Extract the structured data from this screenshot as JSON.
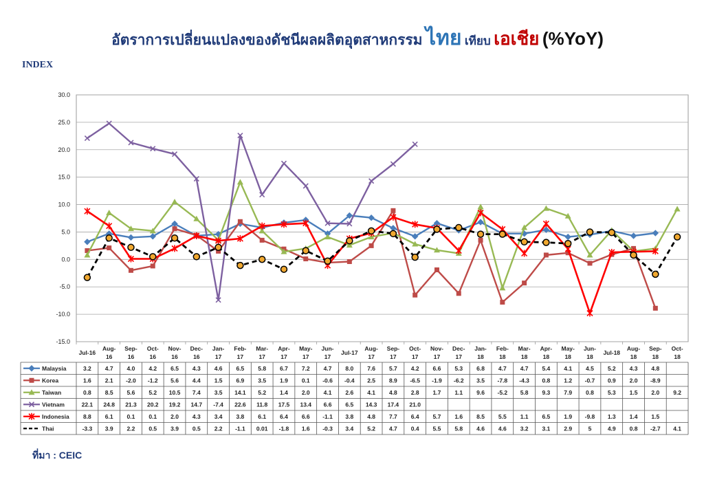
{
  "title": {
    "main": "อัตราการเปลี่ยนแปลงของดัชนีผลผลิตอุตสาหกรรม",
    "thai": "ไทย",
    "compare": "เทียบ",
    "asia": "เอเชีย",
    "yoy": "(%YoY)"
  },
  "index_label": "INDEX",
  "source": "ที่มา : CEIC",
  "colors": {
    "Malaysia": "#4a7ebb",
    "Korea": "#be4b48",
    "Taiwan": "#98b954",
    "Vietnam": "#7d60a0",
    "Indonesia": "#ff0000",
    "Thai": "#000000"
  },
  "chart_data": {
    "type": "line",
    "ylim": [
      -15,
      30
    ],
    "yticks": [
      "-15.0",
      "-10.0",
      "-5.0",
      "0.0",
      "5.0",
      "10.0",
      "15.0",
      "20.0",
      "25.0",
      "30.0"
    ],
    "ytick_values": [
      -15,
      -10,
      -5,
      0,
      5,
      10,
      15,
      20,
      25,
      30
    ],
    "grid": true,
    "categories": [
      [
        "Jul-16"
      ],
      [
        "Aug-",
        "16"
      ],
      [
        "Sep-",
        "16"
      ],
      [
        "Oct-",
        "16"
      ],
      [
        "Nov-",
        "16"
      ],
      [
        "Dec-",
        "16"
      ],
      [
        "Jan-",
        "17"
      ],
      [
        "Feb-",
        "17"
      ],
      [
        "Mar-",
        "17"
      ],
      [
        "Apr-",
        "17"
      ],
      [
        "May-",
        "17"
      ],
      [
        "Jun-",
        "17"
      ],
      [
        "Jul-17"
      ],
      [
        "Aug-",
        "17"
      ],
      [
        "Sep-",
        "17"
      ],
      [
        "Oct-",
        "17"
      ],
      [
        "Nov-",
        "17"
      ],
      [
        "Dec-",
        "17"
      ],
      [
        "Jan-",
        "18"
      ],
      [
        "Feb-",
        "18"
      ],
      [
        "Mar-",
        "18"
      ],
      [
        "Apr-",
        "18"
      ],
      [
        "May-",
        "18"
      ],
      [
        "Jun-",
        "18"
      ],
      [
        "Jul-18"
      ],
      [
        "Aug-",
        "18"
      ],
      [
        "Sep-",
        "18"
      ],
      [
        "Oct-",
        "18"
      ]
    ],
    "series": [
      {
        "name": "Malaysia",
        "marker": "diamond",
        "dash": false,
        "values": [
          3.2,
          4.7,
          4.0,
          4.2,
          6.5,
          4.3,
          4.6,
          6.5,
          5.8,
          6.7,
          7.2,
          4.7,
          8.0,
          7.6,
          5.7,
          4.2,
          6.6,
          5.3,
          6.8,
          4.7,
          4.7,
          5.4,
          4.1,
          4.5,
          5.2,
          4.3,
          4.8,
          null
        ],
        "labels": [
          "3.2",
          "4.7",
          "4.0",
          "4.2",
          "6.5",
          "4.3",
          "4.6",
          "6.5",
          "5.8",
          "6.7",
          "7.2",
          "4.7",
          "8.0",
          "7.6",
          "5.7",
          "4.2",
          "6.6",
          "5.3",
          "6.8",
          "4.7",
          "4.7",
          "5.4",
          "4.1",
          "4.5",
          "5.2",
          "4.3",
          "4.8",
          ""
        ]
      },
      {
        "name": "Korea",
        "marker": "square",
        "dash": false,
        "values": [
          1.6,
          2.1,
          -2.0,
          -1.2,
          5.6,
          4.4,
          1.5,
          6.9,
          3.5,
          1.9,
          0.1,
          -0.6,
          -0.4,
          2.5,
          8.9,
          -6.5,
          -1.9,
          -6.2,
          3.5,
          -7.8,
          -4.3,
          0.8,
          1.2,
          -0.7,
          0.9,
          2.0,
          -8.9,
          null
        ],
        "labels": [
          "1.6",
          "2.1",
          "-2.0",
          "-1.2",
          "5.6",
          "4.4",
          "1.5",
          "6.9",
          "3.5",
          "1.9",
          "0.1",
          "-0.6",
          "-0.4",
          "2.5",
          "8.9",
          "-6.5",
          "-1.9",
          "-6.2",
          "3.5",
          "-7.8",
          "-4.3",
          "0.8",
          "1.2",
          "-0.7",
          "0.9",
          "2.0",
          "-8.9",
          ""
        ]
      },
      {
        "name": "Taiwan",
        "marker": "triangle",
        "dash": false,
        "values": [
          0.8,
          8.5,
          5.6,
          5.2,
          10.5,
          7.4,
          3.5,
          14.1,
          5.2,
          1.4,
          2.0,
          4.1,
          2.6,
          4.1,
          4.8,
          2.8,
          1.7,
          1.1,
          9.6,
          -5.2,
          5.8,
          9.3,
          7.9,
          0.8,
          5.3,
          1.5,
          2.0,
          9.2
        ],
        "labels": [
          "0.8",
          "8.5",
          "5.6",
          "5.2",
          "10.5",
          "7.4",
          "3.5",
          "14.1",
          "5.2",
          "1.4",
          "2.0",
          "4.1",
          "2.6",
          "4.1",
          "4.8",
          "2.8",
          "1.7",
          "1.1",
          "9.6",
          "-5.2",
          "5.8",
          "9.3",
          "7.9",
          "0.8",
          "5.3",
          "1.5",
          "2.0",
          "9.2"
        ]
      },
      {
        "name": "Vietnam",
        "marker": "x",
        "dash": false,
        "values": [
          22.1,
          24.8,
          21.3,
          20.2,
          19.2,
          14.7,
          -7.4,
          22.6,
          11.8,
          17.5,
          13.4,
          6.6,
          6.5,
          14.3,
          17.4,
          21.0,
          null,
          null,
          null,
          null,
          null,
          null,
          null,
          null,
          null,
          null,
          null,
          null
        ],
        "labels": [
          "22.1",
          "24.8",
          "21.3",
          "20.2",
          "19.2",
          "14.7",
          "-7.4",
          "22.6",
          "11.8",
          "17.5",
          "13.4",
          "6.6",
          "6.5",
          "14.3",
          "17.4",
          "21.0",
          "",
          "",
          "",
          "",
          "",
          "",
          "",
          "",
          "",
          "",
          "",
          ""
        ]
      },
      {
        "name": "Indonesia",
        "marker": "star",
        "dash": false,
        "values": [
          8.8,
          6.1,
          0.1,
          0.1,
          2.0,
          4.3,
          3.4,
          3.8,
          6.1,
          6.4,
          6.6,
          -1.1,
          3.8,
          4.8,
          7.7,
          6.4,
          5.7,
          1.6,
          8.5,
          5.5,
          1.1,
          6.5,
          1.9,
          -9.8,
          1.3,
          1.4,
          1.5,
          null
        ],
        "labels": [
          "8.8",
          "6.1",
          "0.1",
          "0.1",
          "2.0",
          "4.3",
          "3.4",
          "3.8",
          "6.1",
          "6.4",
          "6.6",
          "-1.1",
          "3.8",
          "4.8",
          "7.7",
          "6.4",
          "5.7",
          "1.6",
          "8.5",
          "5.5",
          "1.1",
          "6.5",
          "1.9",
          "-9.8",
          "1.3",
          "1.4",
          "1.5",
          ""
        ]
      },
      {
        "name": "Thai",
        "marker": "circle",
        "dash": true,
        "values": [
          -3.3,
          3.9,
          2.2,
          0.5,
          3.9,
          0.5,
          2.2,
          -1.1,
          0.01,
          -1.8,
          1.6,
          -0.3,
          3.4,
          5.2,
          4.7,
          0.4,
          5.5,
          5.8,
          4.6,
          4.6,
          3.2,
          3.1,
          2.9,
          5,
          4.9,
          0.8,
          -2.7,
          4.1
        ],
        "labels": [
          "-3.3",
          "3.9",
          "2.2",
          "0.5",
          "3.9",
          "0.5",
          "2.2",
          "-1.1",
          "0.01",
          "-1.8",
          "1.6",
          "-0.3",
          "3.4",
          "5.2",
          "4.7",
          "0.4",
          "5.5",
          "5.8",
          "4.6",
          "4.6",
          "3.2",
          "3.1",
          "2.9",
          "5",
          "4.9",
          "0.8",
          "-2.7",
          "4.1"
        ]
      }
    ]
  }
}
